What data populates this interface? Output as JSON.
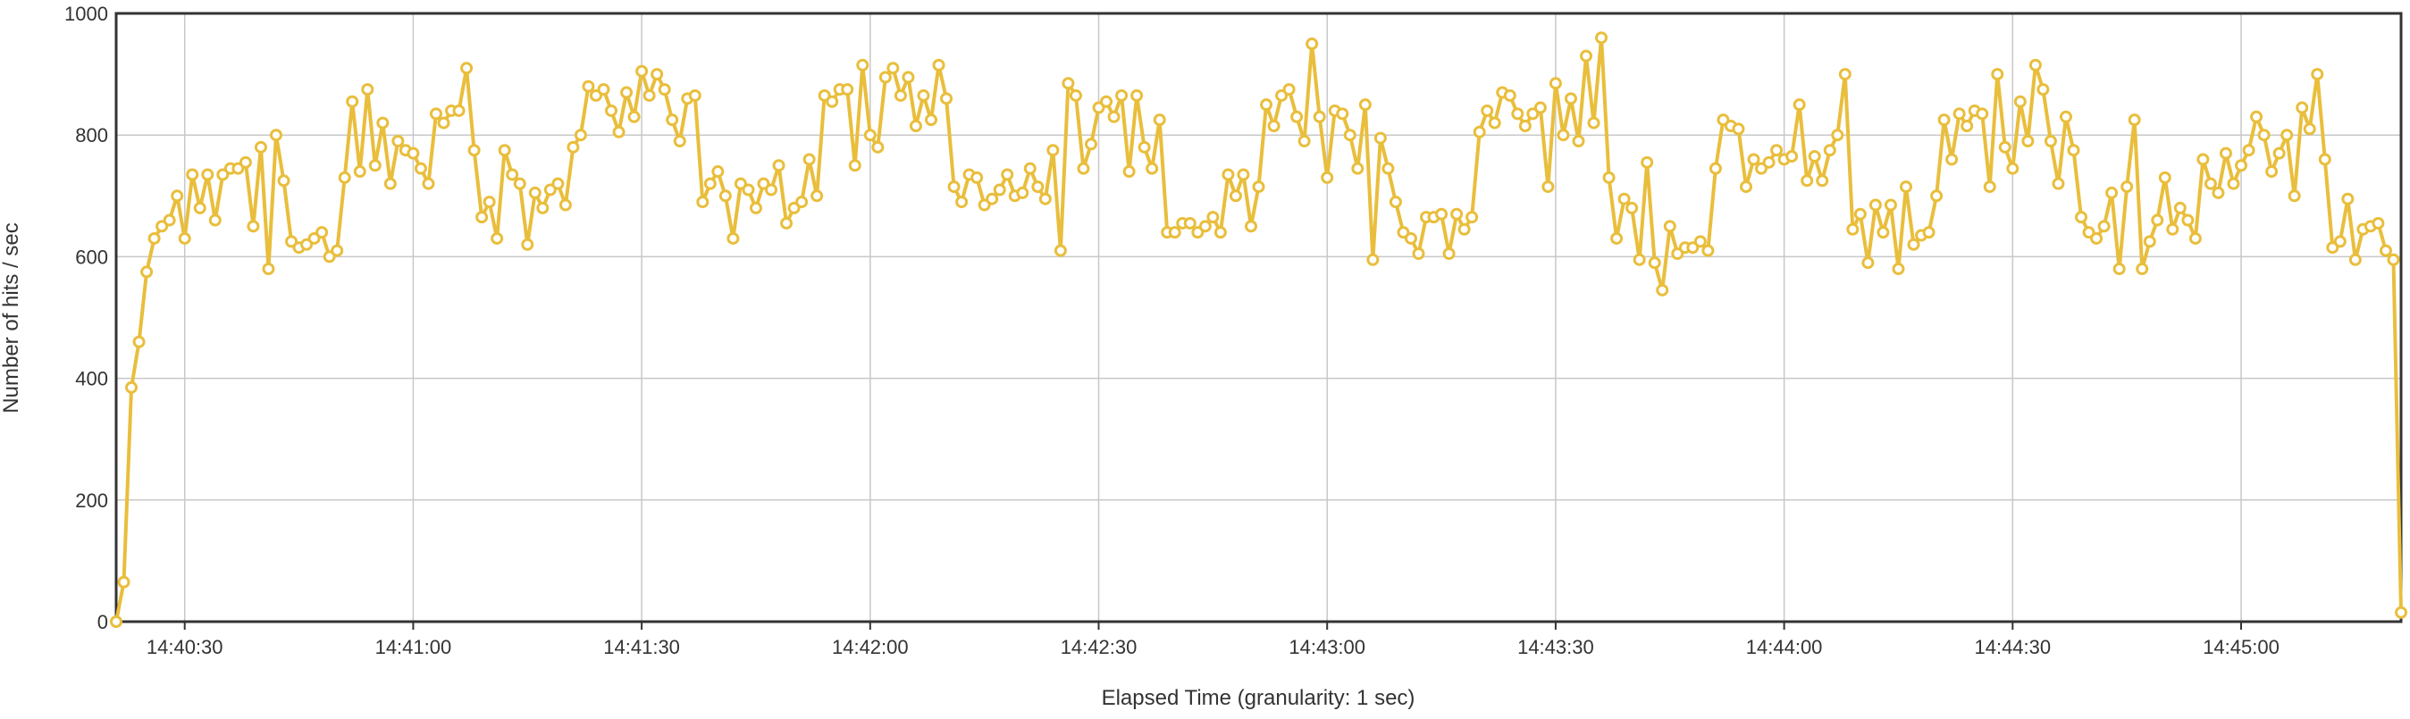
{
  "chart_data": {
    "type": "line",
    "xlabel": "Elapsed Time (granularity: 1 sec)",
    "ylabel": "Number of hits / sec",
    "ylim": [
      0,
      1000
    ],
    "y_ticks": [
      "0",
      "200",
      "400",
      "600",
      "800",
      "1000"
    ],
    "x_ticks": [
      "14:40:30",
      "14:41:00",
      "14:41:30",
      "14:42:00",
      "14:42:30",
      "14:43:00",
      "14:43:30",
      "14:44:00",
      "14:44:30",
      "14:45:00"
    ],
    "x_start": "14:40:21",
    "x_interval_seconds": 1,
    "grid": true,
    "line_color": "#E9BE3C",
    "values": [
      0,
      65,
      385,
      460,
      575,
      630,
      650,
      660,
      700,
      630,
      735,
      680,
      735,
      660,
      735,
      745,
      745,
      755,
      650,
      780,
      580,
      800,
      725,
      625,
      615,
      620,
      630,
      640,
      600,
      610,
      730,
      855,
      740,
      875,
      750,
      820,
      720,
      790,
      775,
      770,
      745,
      720,
      835,
      820,
      840,
      840,
      910,
      775,
      665,
      690,
      630,
      775,
      735,
      720,
      620,
      705,
      680,
      710,
      720,
      685,
      780,
      800,
      880,
      865,
      875,
      840,
      805,
      870,
      830,
      905,
      865,
      900,
      875,
      825,
      790,
      860,
      865,
      690,
      720,
      740,
      700,
      630,
      720,
      710,
      680,
      720,
      710,
      750,
      655,
      680,
      690,
      760,
      700,
      865,
      855,
      875,
      875,
      750,
      915,
      800,
      780,
      895,
      910,
      865,
      895,
      815,
      865,
      825,
      915,
      860,
      715,
      690,
      735,
      730,
      685,
      695,
      710,
      735,
      700,
      705,
      745,
      715,
      695,
      775,
      610,
      885,
      865,
      745,
      785,
      845,
      855,
      830,
      865,
      740,
      865,
      780,
      745,
      825,
      640,
      640,
      655,
      655,
      640,
      650,
      665,
      640,
      735,
      700,
      735,
      650,
      715,
      850,
      815,
      865,
      875,
      830,
      790,
      950,
      830,
      730,
      840,
      835,
      800,
      745,
      850,
      595,
      795,
      745,
      690,
      640,
      630,
      605,
      665,
      665,
      670,
      605,
      670,
      645,
      665,
      805,
      840,
      820,
      870,
      865,
      835,
      815,
      835,
      845,
      715,
      885,
      800,
      860,
      790,
      930,
      820,
      960,
      730,
      630,
      695,
      680,
      595,
      755,
      590,
      545,
      650,
      605,
      615,
      615,
      625,
      610,
      745,
      825,
      815,
      810,
      715,
      760,
      745,
      755,
      775,
      760,
      765,
      850,
      725,
      765,
      725,
      775,
      800,
      900,
      645,
      670,
      590,
      685,
      640,
      685,
      580,
      715,
      620,
      635,
      640,
      700,
      825,
      760,
      835,
      815,
      840,
      835,
      715,
      900,
      780,
      745,
      855,
      790,
      915,
      875,
      790,
      720,
      830,
      775,
      665,
      640,
      630,
      650,
      705,
      580,
      715,
      825,
      580,
      625,
      660,
      730,
      645,
      680,
      660,
      630,
      760,
      720,
      705,
      770,
      720,
      750,
      775,
      830,
      800,
      740,
      770,
      800,
      700,
      845,
      810,
      900,
      760,
      615,
      625,
      695,
      595,
      645,
      650,
      655,
      610,
      595,
      15
    ]
  }
}
